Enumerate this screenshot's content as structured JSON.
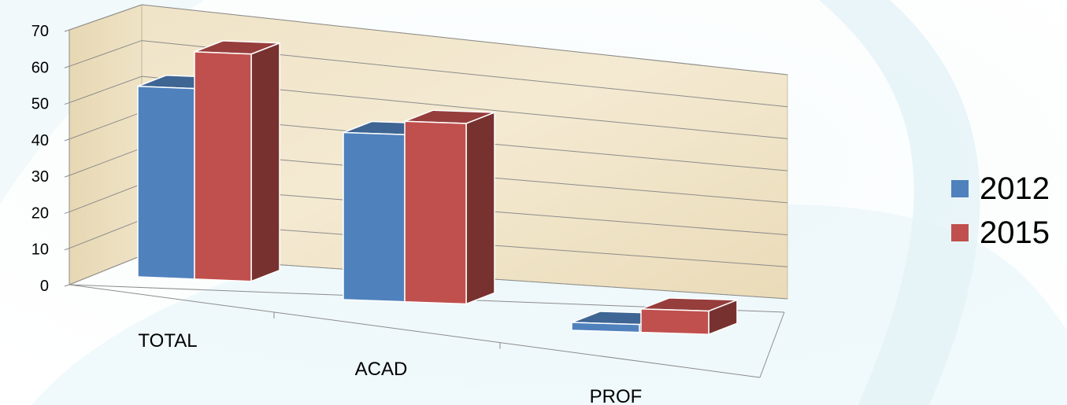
{
  "chart_data": {
    "type": "bar",
    "categories": [
      "TOTAL",
      "ACAD",
      "PROF"
    ],
    "series": [
      {
        "name": "2012",
        "values": [
          57,
          50,
          2
        ],
        "color": "#4F81BD"
      },
      {
        "name": "2015",
        "values": [
          68,
          54,
          7
        ],
        "color": "#C0504D"
      }
    ],
    "ylim": [
      0,
      70
    ],
    "yticks": [
      "0",
      "10",
      "20",
      "30",
      "40",
      "50",
      "60",
      "70"
    ],
    "grid": true,
    "legend_position": "right",
    "style": "3d-clustered-column"
  }
}
